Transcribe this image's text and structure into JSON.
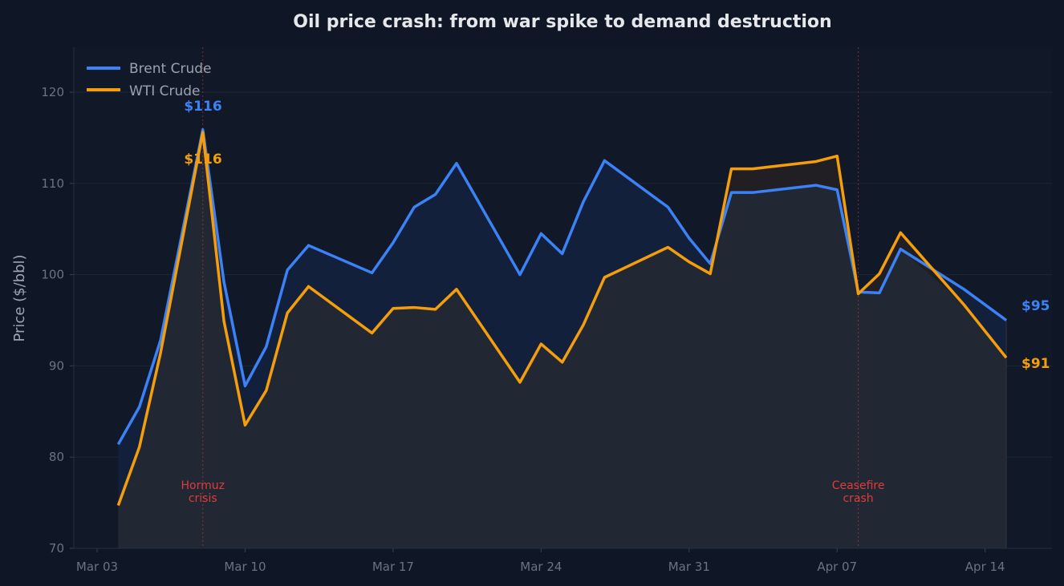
{
  "chart_data": {
    "type": "line",
    "title": "Oil price crash: from war spike to demand destruction",
    "xlabel": "",
    "ylabel": "Price ($/bbl)",
    "ylim": [
      70,
      125
    ],
    "yticks": [
      "70",
      "80",
      "90",
      "100",
      "110",
      "120"
    ],
    "xticks": [
      "Mar 03",
      "Mar 10",
      "Mar 17",
      "Mar 24",
      "Mar 31",
      "Apr 07",
      "Apr 14"
    ],
    "grid": true,
    "legend": "top-left",
    "x": [
      "Mar 04",
      "Mar 05",
      "Mar 06",
      "Mar 07",
      "Mar 08",
      "Mar 09",
      "Mar 10",
      "Mar 11",
      "Mar 12",
      "Mar 13",
      "Mar 16",
      "Mar 17",
      "Mar 18",
      "Mar 19",
      "Mar 20",
      "Mar 23",
      "Mar 24",
      "Mar 25",
      "Mar 26",
      "Mar 27",
      "Mar 30",
      "Mar 31",
      "Apr 01",
      "Apr 02",
      "Apr 03",
      "Apr 06",
      "Apr 07",
      "Apr 08",
      "Apr 09",
      "Apr 10",
      "Apr 13",
      "Apr 15"
    ],
    "series": [
      {
        "name": "Brent Crude",
        "color": "#3b82f6",
        "values": [
          81.4,
          85.5,
          92.8,
          104.3,
          115.9,
          99.2,
          87.8,
          92.1,
          100.5,
          103.2,
          100.2,
          103.5,
          107.4,
          108.8,
          112.2,
          100.0,
          104.5,
          102.3,
          108.0,
          112.5,
          107.4,
          104.0,
          101.2,
          109.0,
          109.0,
          109.8,
          109.3,
          98.1,
          98.0,
          102.8,
          98.4,
          95.0
        ]
      },
      {
        "name": "WTI Crude",
        "color": "#f59e0b",
        "values": [
          74.7,
          81.1,
          91.4,
          103.5,
          115.6,
          94.9,
          83.5,
          87.3,
          95.8,
          98.7,
          93.6,
          96.3,
          96.4,
          96.2,
          98.4,
          88.2,
          92.4,
          90.4,
          94.5,
          99.7,
          103.0,
          101.4,
          100.1,
          111.6,
          111.6,
          112.4,
          113.0,
          97.9,
          100.1,
          104.6,
          96.7,
          90.9
        ]
      }
    ],
    "annotations": [
      {
        "date": "Mar 08",
        "text": [
          "Hormuz",
          "crisis"
        ],
        "color": "#dc3c3c"
      },
      {
        "date": "Apr 08",
        "text": [
          "Ceasefire",
          "crash"
        ],
        "color": "#dc3c3c"
      }
    ],
    "point_labels": [
      {
        "series": 0,
        "text": "$116"
      },
      {
        "series": 1,
        "text": "$116"
      },
      {
        "series": 0,
        "text": "$95"
      },
      {
        "series": 1,
        "text": "$91"
      }
    ]
  }
}
